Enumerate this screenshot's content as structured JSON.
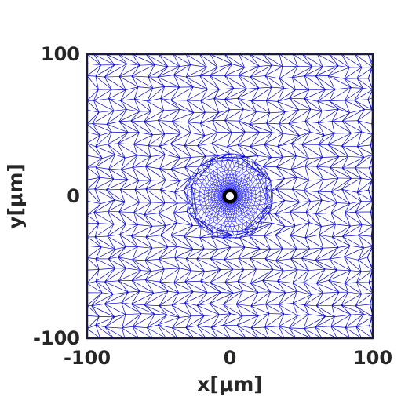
{
  "chart_data": {
    "type": "mesh",
    "xlabel": "x[μm]",
    "ylabel": "y[μm]",
    "xlim": [
      -100,
      100
    ],
    "ylim": [
      -100,
      100
    ],
    "xticks": [
      "-100",
      "0",
      "100"
    ],
    "yticks": [
      "100",
      "0",
      "-100"
    ],
    "hole": {
      "center": [
        0,
        0
      ],
      "radius": 4
    },
    "mesh_color": "#0000cc",
    "refined_color": "#1a1aff",
    "frame_color": "#1a1a3a",
    "hole_color": "#000000"
  }
}
